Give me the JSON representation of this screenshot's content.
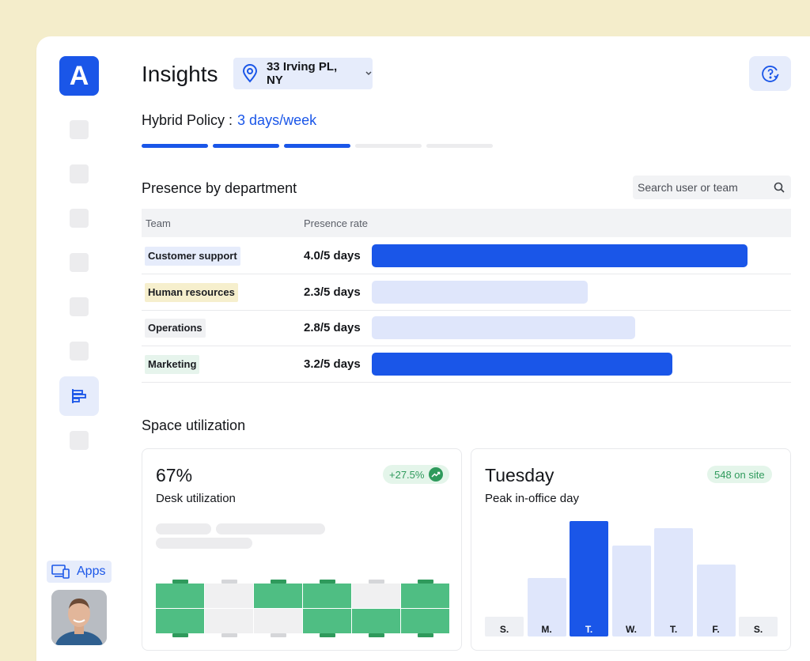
{
  "app": {
    "logo_letter": "A",
    "title": "Insights"
  },
  "location": {
    "name": "33 Irving PL, NY"
  },
  "policy": {
    "label": "Hybrid Policy :",
    "value": "3 days/week",
    "filled_segments": 3,
    "total_segments": 5
  },
  "sidebar": {
    "apps_label": "Apps",
    "active_icon": "chart-icon"
  },
  "presence": {
    "title": "Presence by department",
    "search_placeholder": "Search user or team",
    "columns": [
      "Team",
      "Presence rate"
    ],
    "rows": [
      {
        "team": "Customer support",
        "rate": "4.0/5 days",
        "value": 4.0,
        "chip_color": "#e6ecfb",
        "bar_color": "#1a56e8"
      },
      {
        "team": "Human resources",
        "rate": "2.3/5 days",
        "value": 2.3,
        "chip_color": "#f6efcd",
        "bar_color": "#dfe6fb"
      },
      {
        "team": "Operations",
        "rate": "2.8/5 days",
        "value": 2.8,
        "chip_color": "#f0f1f3",
        "bar_color": "#dfe6fb"
      },
      {
        "team": "Marketing",
        "rate": "3.2/5 days",
        "value": 3.2,
        "chip_color": "#e6f4ec",
        "bar_color": "#1a56e8"
      }
    ]
  },
  "space": {
    "title": "Space utilization",
    "desk": {
      "value": "67%",
      "label": "Desk utilization",
      "badge": "+27.5%"
    },
    "peak": {
      "value": "Tuesday",
      "label": "Peak in-office day",
      "badge": "548 on site",
      "days": [
        "S.",
        "M.",
        "T.",
        "W.",
        "T.",
        "F.",
        "S."
      ],
      "levels": [
        0.17,
        0.51,
        1.0,
        0.79,
        0.94,
        0.62,
        0.17
      ],
      "highlight_index": 2
    }
  },
  "colors": {
    "accent": "#1a56e8",
    "accent_light": "#dfe6fb",
    "green": "#4fbe83"
  }
}
